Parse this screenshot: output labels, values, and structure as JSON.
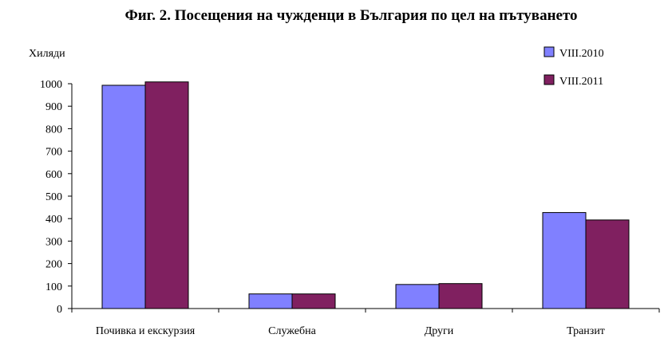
{
  "chart_data": {
    "type": "bar",
    "title": "Фиг. 2. Посещения на чужденци в България по цел на пътуването",
    "ylabel": "Хиляди",
    "xlabel": "",
    "categories": [
      "Почивка и екскурзия",
      "Служебна",
      "Други",
      "Транзит"
    ],
    "series": [
      {
        "name": "VIII.2010",
        "values": [
          993,
          65,
          107,
          427
        ],
        "color": "#8080ff"
      },
      {
        "name": "VIII.2011",
        "values": [
          1008,
          65,
          111,
          394
        ],
        "color": "#802060"
      }
    ],
    "ylim": [
      0,
      1000
    ],
    "yticks": [
      "0",
      "100",
      "200",
      "300",
      "400",
      "500",
      "600",
      "700",
      "800",
      "900",
      "1000"
    ],
    "grid": false,
    "legend_position": "top-right"
  }
}
